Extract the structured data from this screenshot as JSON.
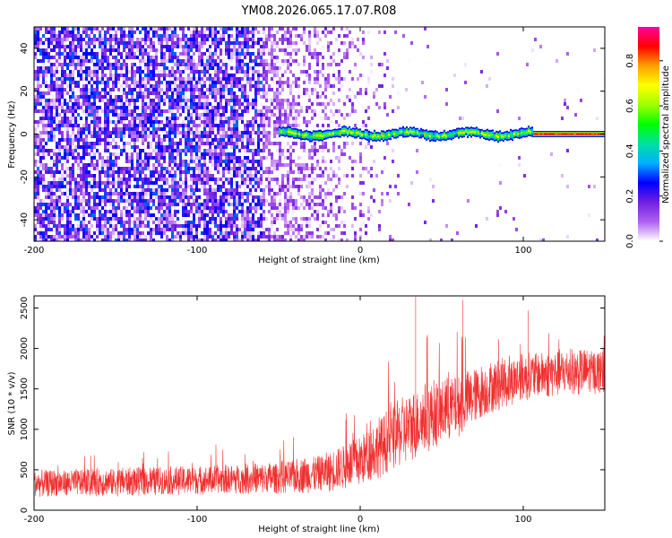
{
  "title": "YM08.2026.065.17.07.R08",
  "chart_data": [
    {
      "type": "heatmap",
      "xlabel": "Height of straight line (km)",
      "ylabel": "Frequency (Hz)",
      "xlim": [
        -200,
        150
      ],
      "ylim": [
        -50,
        50
      ],
      "xticks": [
        -200,
        -100,
        0,
        100
      ],
      "yticks": [
        -40,
        -20,
        0,
        20,
        40
      ],
      "signal_band": {
        "x_start": -50,
        "x_end": 150,
        "center_frequency": 0,
        "half_width": 3
      },
      "noise_fades_out_at": 20,
      "colorbar": {
        "label": "Normalized spectral amplitude",
        "range": [
          0.0,
          0.95
        ],
        "ticks": [
          "0.0",
          "0.2",
          "0.4",
          "0.6",
          "0.8"
        ],
        "tick_values": [
          0.0,
          0.2,
          0.4,
          0.6,
          0.8
        ],
        "colors": [
          "#ffffff",
          "#b060f0",
          "#7020e0",
          "#0000ff",
          "#00b0ff",
          "#00e0a0",
          "#00ff00",
          "#a0ff00",
          "#ffff00",
          "#ffa000",
          "#ff0000",
          "#ff00a0"
        ]
      }
    },
    {
      "type": "line",
      "xlabel": "Height of straight line (km)",
      "ylabel": "SNR (10 * v/v)",
      "xlim": [
        -200,
        150
      ],
      "ylim": [
        0,
        2650
      ],
      "xticks": [
        -200,
        -100,
        0,
        100
      ],
      "yticks": [
        0,
        500,
        1000,
        1500,
        2000,
        2500
      ],
      "color": "#f03030",
      "trend": {
        "x": [
          -200,
          -150,
          -100,
          -50,
          -20,
          0,
          20,
          40,
          60,
          80,
          100,
          120,
          150
        ],
        "mean": [
          330,
          350,
          370,
          400,
          470,
          620,
          900,
          1150,
          1300,
          1520,
          1650,
          1700,
          1720
        ],
        "spread": [
          170,
          180,
          180,
          200,
          250,
          330,
          420,
          450,
          400,
          330,
          300,
          300,
          280
        ]
      },
      "peaks": [
        {
          "x": 34,
          "y": 2640
        },
        {
          "x": 63,
          "y": 2600
        },
        {
          "x": 103,
          "y": 2470
        }
      ]
    }
  ]
}
